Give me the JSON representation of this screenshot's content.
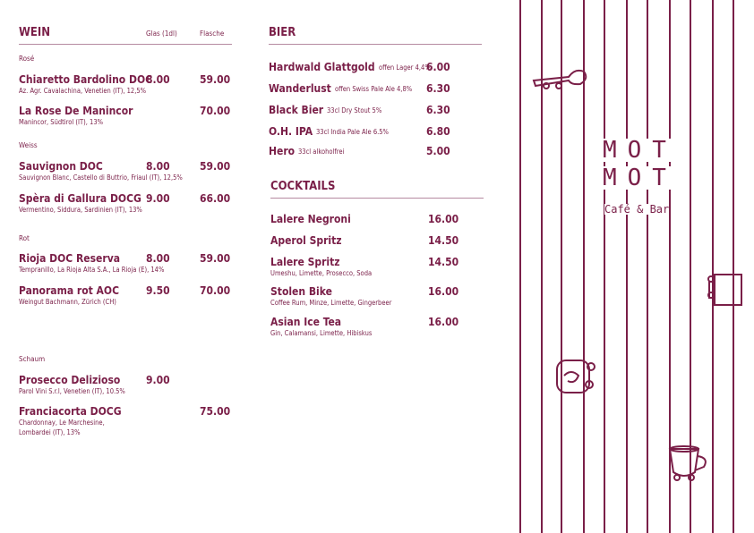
{
  "wine": {
    "title": "WEIN",
    "col_glass": "Glas (1dl)",
    "col_bottle": "Flasche",
    "groups": [
      {
        "name": "Rosé",
        "items": [
          {
            "name": "Chiaretto Bardolino DOC",
            "desc": [
              "Az. Agr. Cavalachina, Venetien (IT), 12,5%"
            ],
            "glass": "8.00",
            "bottle": "59.00"
          },
          {
            "name": "La Rose De Manincor",
            "desc": [
              "Manincor, Südtirol (IT), 13%"
            ],
            "bottle": "70.00"
          }
        ]
      },
      {
        "name": "Weiss",
        "items": [
          {
            "name": "Sauvignon DOC",
            "desc": [
              "Sauvignon Blanc, Castello di Buttrio, Friaul (IT), 12,5%"
            ],
            "glass": "8.00",
            "bottle": "59.00"
          },
          {
            "name": "Spèra di Gallura DOCG",
            "desc": [
              "Vermentino, Siddura, Sardinien (IT), 13%"
            ],
            "glass": "9.00",
            "bottle": "66.00"
          }
        ]
      },
      {
        "name": "Rot",
        "items": [
          {
            "name": "Rioja DOC Reserva",
            "desc": [
              "Tempranillo, La Rioja Alta S.A., La Rioja (E), 14%"
            ],
            "glass": "8.00",
            "bottle": "59.00"
          },
          {
            "name": "Panorama rot AOC",
            "desc": [
              "Weingut Bachmann, Zürich (CH)"
            ],
            "glass": "9.50",
            "bottle": "70.00"
          }
        ]
      },
      {
        "name": "Schaum",
        "items": [
          {
            "name": "Prosecco Delizioso",
            "desc": [
              "Parol Vini S.r.l, Venetien (IT), 10.5%"
            ],
            "glass": "9.00"
          },
          {
            "name": "Franciacorta DOCG",
            "desc": [
              "Chardonnay, Le Marchesine,",
              "Lombardei (IT), 13%"
            ],
            "bottle": "75.00"
          }
        ]
      }
    ]
  },
  "beer": {
    "title": "BIER",
    "items": [
      {
        "name": "Hardwald Glattgold",
        "note": "offen Lager 4,4%",
        "price": "6.00"
      },
      {
        "name": "Wanderlust",
        "note": "offen Swiss Pale Ale 4,8%",
        "price": "6.30"
      },
      {
        "name": "Black Bier",
        "note": "33cl Dry Stout 5%",
        "price": "6.30"
      },
      {
        "name": "O.H. IPA",
        "note": "33cl India Pale Ale 6.5%",
        "price": "6.80"
      },
      {
        "name": "Hero",
        "note": "33cl alkoholfrei",
        "price": "5.00"
      }
    ]
  },
  "cocktails": {
    "title": "COCKTAILS",
    "items": [
      {
        "name": "Lalere Negroni",
        "price": "16.00"
      },
      {
        "name": "Aperol Spritz",
        "price": "14.50"
      },
      {
        "name": "Lalere Spritz",
        "desc": "Umeshu, Limette, Prosecco, Soda",
        "price": "14.50"
      },
      {
        "name": "Stolen Bike",
        "desc": "Coffee Rum, Minze, Limette, Gingerbeer",
        "price": "16.00"
      },
      {
        "name": "Asian Ice Tea",
        "desc": "Gin, Calamansi, Limette, Hibiskus",
        "price": "16.00"
      }
    ]
  },
  "brand": {
    "line1": "MOT",
    "line2": "MOT",
    "tagline": "Café & Bar"
  }
}
